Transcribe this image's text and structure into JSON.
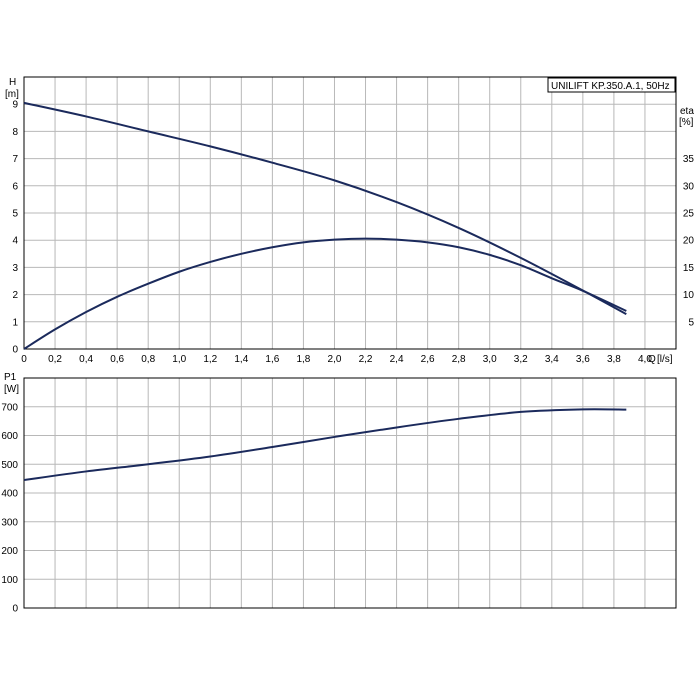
{
  "chart_data": [
    {
      "type": "line",
      "title": "UNILIFT KP.350.A.1, 50Hz",
      "xlabel": "Q [l/s]",
      "x_unit_label": "Q",
      "x_unit": "[l/s]",
      "ylabel_left_name": "H",
      "ylabel_left_unit": "[m]",
      "ylabel_right_name": "eta",
      "ylabel_right_unit": "[%]",
      "xlim": [
        0,
        4.2
      ],
      "ylim_left": [
        0,
        10
      ],
      "ylim_right": [
        0,
        50
      ],
      "x_ticks": [
        "0",
        "0,2",
        "0,4",
        "0,6",
        "0,8",
        "1,0",
        "1,2",
        "1,4",
        "1,6",
        "1,8",
        "2,0",
        "2,2",
        "2,4",
        "2,6",
        "2,8",
        "3,0",
        "3,2",
        "3,4",
        "3,6",
        "3,8",
        "4,0"
      ],
      "y_ticks_left": [
        "0",
        "1",
        "2",
        "3",
        "4",
        "5",
        "6",
        "7",
        "8",
        "9"
      ],
      "y_ticks_right": [
        "5",
        "10",
        "15",
        "20",
        "25",
        "30",
        "35"
      ],
      "grid": true,
      "legend_placement": "top-right",
      "series": [
        {
          "axis": "left",
          "x": [
            0,
            0.4,
            0.8,
            1.2,
            1.6,
            2.0,
            2.4,
            2.8,
            3.2,
            3.6,
            3.88
          ],
          "y": [
            9.05,
            8.55,
            8.0,
            7.45,
            6.85,
            6.2,
            5.4,
            4.45,
            3.35,
            2.15,
            1.28
          ]
        },
        {
          "axis": "right",
          "x": [
            0,
            0.2,
            0.4,
            0.6,
            0.8,
            1.0,
            1.2,
            1.4,
            1.6,
            1.8,
            2.0,
            2.2,
            2.4,
            2.6,
            2.8,
            3.0,
            3.2,
            3.4,
            3.6,
            3.88
          ],
          "y": [
            0,
            3.6,
            6.8,
            9.6,
            12.0,
            14.2,
            16.0,
            17.5,
            18.7,
            19.6,
            20.1,
            20.3,
            20.1,
            19.6,
            18.7,
            17.3,
            15.4,
            13.0,
            10.7,
            7.0
          ]
        }
      ]
    },
    {
      "type": "line",
      "ylabel_name": "P1",
      "ylabel_unit": "[W]",
      "xlim": [
        0,
        4.2
      ],
      "ylim": [
        0,
        800
      ],
      "y_ticks": [
        "0",
        "100",
        "200",
        "300",
        "400",
        "500",
        "600",
        "700"
      ],
      "grid": true,
      "series": [
        {
          "x": [
            0,
            0.4,
            0.8,
            1.2,
            1.6,
            2.0,
            2.4,
            2.8,
            3.2,
            3.6,
            3.88
          ],
          "y": [
            445,
            475,
            500,
            527,
            560,
            595,
            628,
            658,
            682,
            691,
            690
          ]
        }
      ]
    }
  ]
}
